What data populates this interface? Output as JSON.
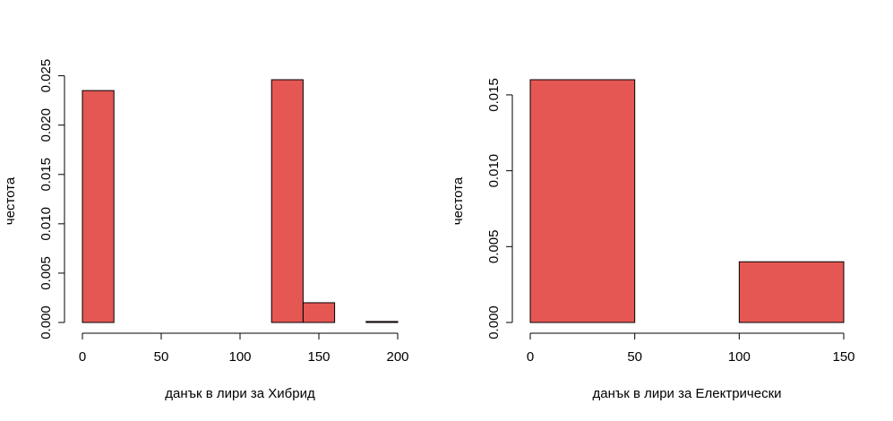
{
  "chart_data": [
    {
      "type": "histogram",
      "xlabel": "данък в лири за Хибрид",
      "ylabel": "честота",
      "bins": [
        0,
        20,
        40,
        60,
        80,
        100,
        120,
        140,
        160,
        180,
        200
      ],
      "values": [
        0.0235,
        0,
        0,
        0,
        0,
        0,
        0.0246,
        0.002,
        0,
        0.0001
      ],
      "color": "#e55753",
      "xlim": [
        0,
        200
      ],
      "ylim": [
        0,
        0.0246
      ],
      "xticks": [
        0,
        50,
        100,
        150,
        200
      ],
      "yticks": [
        {
          "value": 0,
          "label": "0.000"
        },
        {
          "value": 0.005,
          "label": "0.005"
        },
        {
          "value": 0.01,
          "label": "0.010"
        },
        {
          "value": 0.015,
          "label": "0.015"
        },
        {
          "value": 0.02,
          "label": "0.020"
        },
        {
          "value": 0.025,
          "label": "0.025"
        }
      ]
    },
    {
      "type": "histogram",
      "xlabel": "данък в лири за Електрически",
      "ylabel": "честота",
      "bins": [
        0,
        50,
        100,
        150
      ],
      "values": [
        0.016,
        0,
        0.004
      ],
      "color": "#e55753",
      "xlim": [
        0,
        150
      ],
      "ylim": [
        0,
        0.016
      ],
      "xticks": [
        0,
        50,
        100,
        150
      ],
      "yticks": [
        {
          "value": 0,
          "label": "0.000"
        },
        {
          "value": 0.005,
          "label": "0.005"
        },
        {
          "value": 0.01,
          "label": "0.010"
        },
        {
          "value": 0.015,
          "label": "0.015"
        }
      ]
    }
  ]
}
